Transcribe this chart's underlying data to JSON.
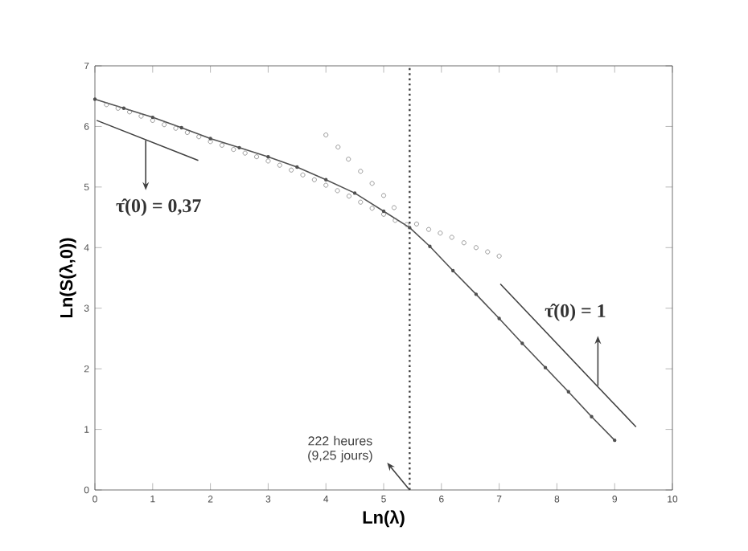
{
  "chart_data": {
    "type": "line",
    "xlabel": "Ln(λ)",
    "ylabel": "Ln(S(λ,0))",
    "xlim": [
      0,
      10
    ],
    "ylim": [
      0,
      7
    ],
    "xticks": [
      0,
      1,
      2,
      3,
      4,
      5,
      6,
      7,
      8,
      9,
      10
    ],
    "yticks": [
      0,
      1,
      2,
      3,
      4,
      5,
      6,
      7
    ],
    "series": [
      {
        "color": "#505050",
        "marker": "circle",
        "line_style": "solid",
        "x": [
          0,
          0.5,
          1,
          1.5,
          2,
          2.5,
          3,
          3.5,
          4,
          4.5,
          5,
          5.45,
          5.8,
          6.2,
          6.6,
          7.0,
          7.4,
          7.8,
          8.2,
          8.6,
          9.0
        ],
        "values": [
          6.45,
          6.3,
          6.15,
          5.98,
          5.8,
          5.65,
          5.5,
          5.33,
          5.12,
          4.9,
          4.6,
          4.33,
          4.02,
          3.62,
          3.23,
          2.83,
          2.42,
          2.02,
          1.62,
          1.21,
          0.82
        ]
      },
      {
        "type": "scatter",
        "color": "#808080",
        "marker": "circle",
        "x": [
          0.2,
          0.4,
          0.6,
          0.8,
          1.0,
          1.2,
          1.4,
          1.6,
          1.8,
          2.0,
          2.2,
          2.4,
          2.6,
          2.8,
          3.0,
          3.2,
          3.4,
          3.6,
          3.8,
          4.0,
          4.2,
          4.4,
          4.6,
          4.8,
          5.0,
          5.2,
          5.4,
          5.57,
          5.78,
          5.98,
          6.18,
          6.39,
          6.6,
          6.8,
          7.0
        ],
        "values": [
          6.36,
          6.3,
          6.24,
          6.17,
          6.1,
          6.03,
          5.97,
          5.9,
          5.83,
          5.75,
          5.69,
          5.62,
          5.56,
          5.5,
          5.43,
          5.36,
          5.28,
          5.2,
          5.12,
          5.03,
          4.94,
          4.85,
          4.75,
          4.65,
          4.55,
          4.45,
          4.38,
          4.39,
          4.3,
          4.24,
          4.17,
          4.08,
          4.0,
          3.93,
          3.86
        ]
      },
      {
        "type": "scatter",
        "color": "#808080",
        "marker": "circle",
        "x": [
          4.0,
          4.21,
          4.39,
          4.6,
          4.8,
          5.0,
          5.18
        ],
        "values": [
          5.86,
          5.66,
          5.46,
          5.26,
          5.06,
          4.86,
          4.66
        ]
      },
      {
        "color": "#404040",
        "marker": "none",
        "line_style": "solid",
        "x": [
          0.03,
          1.79
        ],
        "values": [
          6.1,
          5.44
        ]
      },
      {
        "color": "#404040",
        "marker": "none",
        "line_style": "solid",
        "x": [
          7.02,
          9.37
        ],
        "values": [
          3.4,
          1.04
        ]
      }
    ],
    "ref_lines": [
      {
        "axis": "x",
        "value": 5.45,
        "label": "222 heures (9,25 jours)",
        "line_style": "dotted",
        "color": "#404040"
      }
    ],
    "annotations": [
      {
        "text": "τ̂(0) = 0,37",
        "x": 0.88,
        "y": 5.77
      },
      {
        "text": "τ̂(0) = 1",
        "x": 8.71,
        "y": 1.72
      }
    ]
  }
}
